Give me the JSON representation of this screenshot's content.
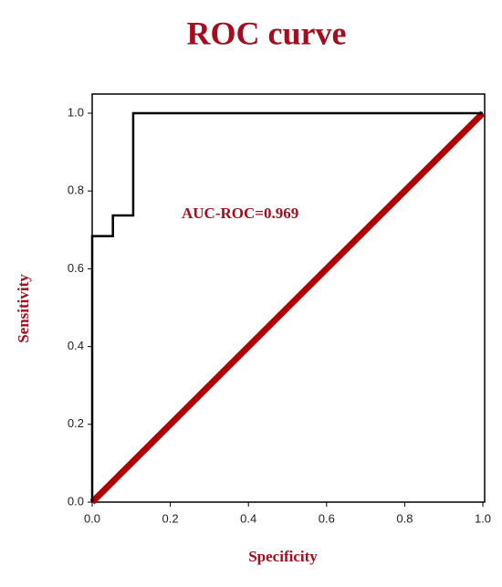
{
  "chart_data": {
    "type": "line",
    "title": "ROC curve",
    "xlabel": "Specificity",
    "ylabel": "Sensitivity",
    "annotation": "AUC-ROC=0.969",
    "xlim": [
      0,
      1
    ],
    "ylim": [
      0,
      1
    ],
    "xticks": [
      {
        "value": 0,
        "label": "0.0"
      },
      0.2,
      0.4,
      0.6,
      0.8,
      {
        "value": 1,
        "label": "1.0"
      }
    ],
    "yticks": [
      {
        "value": 0,
        "label": "0.0"
      },
      0.2,
      0.4,
      0.6,
      0.8,
      {
        "value": 1,
        "label": "1.0"
      }
    ],
    "series": [
      {
        "color": "#000000",
        "x": [
          0,
          0,
          0.053,
          0.053,
          0.105,
          0.105,
          1
        ],
        "values": [
          0,
          0.684,
          0.684,
          0.737,
          0.737,
          1,
          1
        ]
      },
      {
        "color": "#b00000",
        "x": [
          0,
          1
        ],
        "values": [
          0,
          1
        ]
      }
    ]
  }
}
